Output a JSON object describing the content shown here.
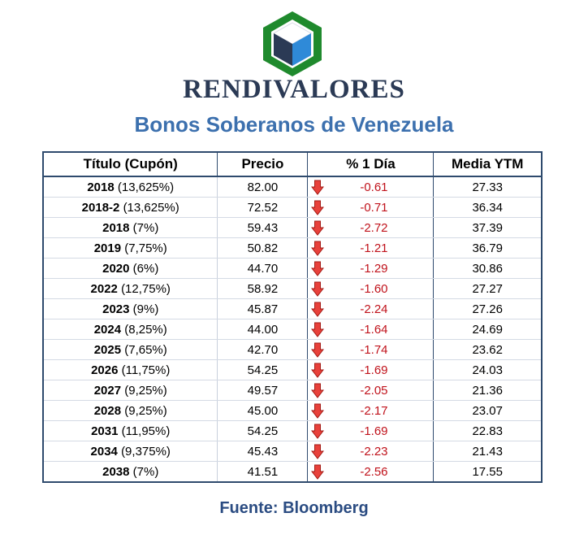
{
  "brand": {
    "name": "RENDIVALORES",
    "logo_icon": "cube-logo-icon",
    "colors": {
      "frame": "#1f8a2d",
      "cube_dark": "#2b3a55",
      "cube_blue": "#2f8ad8",
      "cube_top": "#ffffff"
    }
  },
  "subtitle": "Bonos Soberanos de Venezuela",
  "table": {
    "headers": {
      "title": "Título (Cupón)",
      "price": "Precio",
      "change": "% 1 Día",
      "ytm": "Media YTM"
    },
    "change_icon": "red-down-arrow-icon",
    "rows": [
      {
        "year": "2018",
        "coupon": "(13,625%)",
        "price": "82.00",
        "change": "-0.61",
        "ytm": "27.33"
      },
      {
        "year": "2018-2",
        "coupon": "(13,625%)",
        "price": "72.52",
        "change": "-0.71",
        "ytm": "36.34"
      },
      {
        "year": "2018",
        "coupon": "(7%)",
        "price": "59.43",
        "change": "-2.72",
        "ytm": "37.39"
      },
      {
        "year": "2019",
        "coupon": "(7,75%)",
        "price": "50.82",
        "change": "-1.21",
        "ytm": "36.79"
      },
      {
        "year": "2020",
        "coupon": "(6%)",
        "price": "44.70",
        "change": "-1.29",
        "ytm": "30.86"
      },
      {
        "year": "2022",
        "coupon": "(12,75%)",
        "price": "58.92",
        "change": "-1.60",
        "ytm": "27.27"
      },
      {
        "year": "2023",
        "coupon": "(9%)",
        "price": "45.87",
        "change": "-2.24",
        "ytm": "27.26"
      },
      {
        "year": "2024",
        "coupon": "(8,25%)",
        "price": "44.00",
        "change": "-1.64",
        "ytm": "24.69"
      },
      {
        "year": "2025",
        "coupon": "(7,65%)",
        "price": "42.70",
        "change": "-1.74",
        "ytm": "23.62"
      },
      {
        "year": "2026",
        "coupon": "(11,75%)",
        "price": "54.25",
        "change": "-1.69",
        "ytm": "24.03"
      },
      {
        "year": "2027",
        "coupon": "(9,25%)",
        "price": "49.57",
        "change": "-2.05",
        "ytm": "21.36"
      },
      {
        "year": "2028",
        "coupon": "(9,25%)",
        "price": "45.00",
        "change": "-2.17",
        "ytm": "23.07"
      },
      {
        "year": "2031",
        "coupon": "(11,95%)",
        "price": "54.25",
        "change": "-1.69",
        "ytm": "22.83"
      },
      {
        "year": "2034",
        "coupon": "(9,375%)",
        "price": "45.43",
        "change": "-2.23",
        "ytm": "21.43"
      },
      {
        "year": "2038",
        "coupon": "(7%)",
        "price": "41.51",
        "change": "-2.56",
        "ytm": "17.55"
      }
    ]
  },
  "source": "Fuente: Bloomberg"
}
